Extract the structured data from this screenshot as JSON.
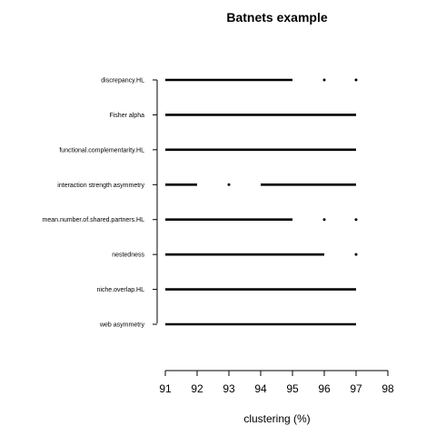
{
  "chart_data": {
    "type": "segments",
    "title": "Batnets example",
    "xlabel": "clustering (%)",
    "ylabel": "",
    "xlim": [
      91,
      98
    ],
    "xticks": [
      91,
      92,
      93,
      94,
      95,
      96,
      97,
      98
    ],
    "grid": false,
    "legend": "none",
    "categories": [
      "discrepancy.HL",
      "Fisher alpha",
      "functional.complementarity.HL",
      "interaction strength asymmetry",
      "mean.number.of.shared.partners.HL",
      "nestedness",
      "niche.overlap.HL",
      "web asymmetry"
    ],
    "series": [
      {
        "category": "discrepancy.HL",
        "segments": [
          [
            91,
            95
          ]
        ],
        "points": [
          96,
          97
        ]
      },
      {
        "category": "Fisher alpha",
        "segments": [
          [
            91,
            97
          ]
        ],
        "points": []
      },
      {
        "category": "functional.complementarity.HL",
        "segments": [
          [
            91,
            97
          ]
        ],
        "points": []
      },
      {
        "category": "interaction strength asymmetry",
        "segments": [
          [
            91,
            92
          ],
          [
            94,
            97
          ]
        ],
        "points": [
          93
        ]
      },
      {
        "category": "mean.number.of.shared.partners.HL",
        "segments": [
          [
            91,
            95
          ]
        ],
        "points": [
          96,
          97
        ]
      },
      {
        "category": "nestedness",
        "segments": [
          [
            91,
            96
          ]
        ],
        "points": [
          97
        ]
      },
      {
        "category": "niche.overlap.HL",
        "segments": [
          [
            91,
            97
          ]
        ],
        "points": []
      },
      {
        "category": "web asymmetry",
        "segments": [
          [
            91,
            97
          ]
        ],
        "points": []
      }
    ]
  }
}
